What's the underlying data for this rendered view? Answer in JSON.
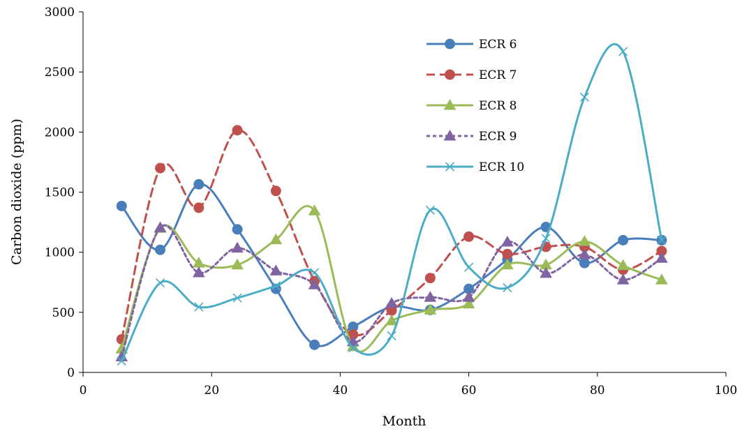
{
  "chart_data": {
    "type": "scatter",
    "title": "",
    "xlabel": "Month",
    "ylabel": "Carbon dioxide (ppm)",
    "xlim": [
      0,
      100
    ],
    "ylim": [
      0,
      3000
    ],
    "xticks": [
      "0",
      "20",
      "40",
      "60",
      "80",
      "100"
    ],
    "yticks": [
      "0",
      "500",
      "1000",
      "1500",
      "2000",
      "2500",
      "3000"
    ],
    "grid": false,
    "legend_position": "top-right",
    "x": [
      6,
      12,
      18,
      24,
      30,
      36,
      42,
      48,
      54,
      60,
      66,
      72,
      78,
      84,
      90
    ],
    "series": [
      {
        "name": "ECR 6",
        "color": "#4a7ebb",
        "marker": "circle",
        "dash": "solid",
        "values": [
          1385,
          1020,
          1565,
          1190,
          695,
          230,
          380,
          545,
          520,
          695,
          940,
          1210,
          910,
          1100,
          1100
        ]
      },
      {
        "name": "ECR 7",
        "color": "#c0504d",
        "marker": "circle",
        "dash": "dashed",
        "values": [
          275,
          1700,
          1370,
          2015,
          1510,
          760,
          315,
          515,
          785,
          1130,
          985,
          1045,
          1045,
          855,
          1010
        ]
      },
      {
        "name": "ECR 8",
        "color": "#9bbb59",
        "marker": "triangle",
        "dash": "solid",
        "values": [
          195,
          1200,
          910,
          895,
          1105,
          1345,
          215,
          430,
          520,
          570,
          895,
          895,
          1090,
          890,
          770
        ]
      },
      {
        "name": "ECR 9",
        "color": "#8064a2",
        "marker": "triangle",
        "dash": "dotted",
        "values": [
          130,
          1205,
          830,
          1035,
          845,
          730,
          255,
          575,
          625,
          625,
          1085,
          825,
          980,
          770,
          950
        ]
      },
      {
        "name": "ECR 10",
        "color": "#4bacc6",
        "marker": "x",
        "dash": "solid",
        "values": [
          95,
          745,
          545,
          620,
          720,
          830,
          205,
          305,
          1350,
          875,
          705,
          1115,
          2290,
          2670,
          1100
        ]
      }
    ]
  }
}
